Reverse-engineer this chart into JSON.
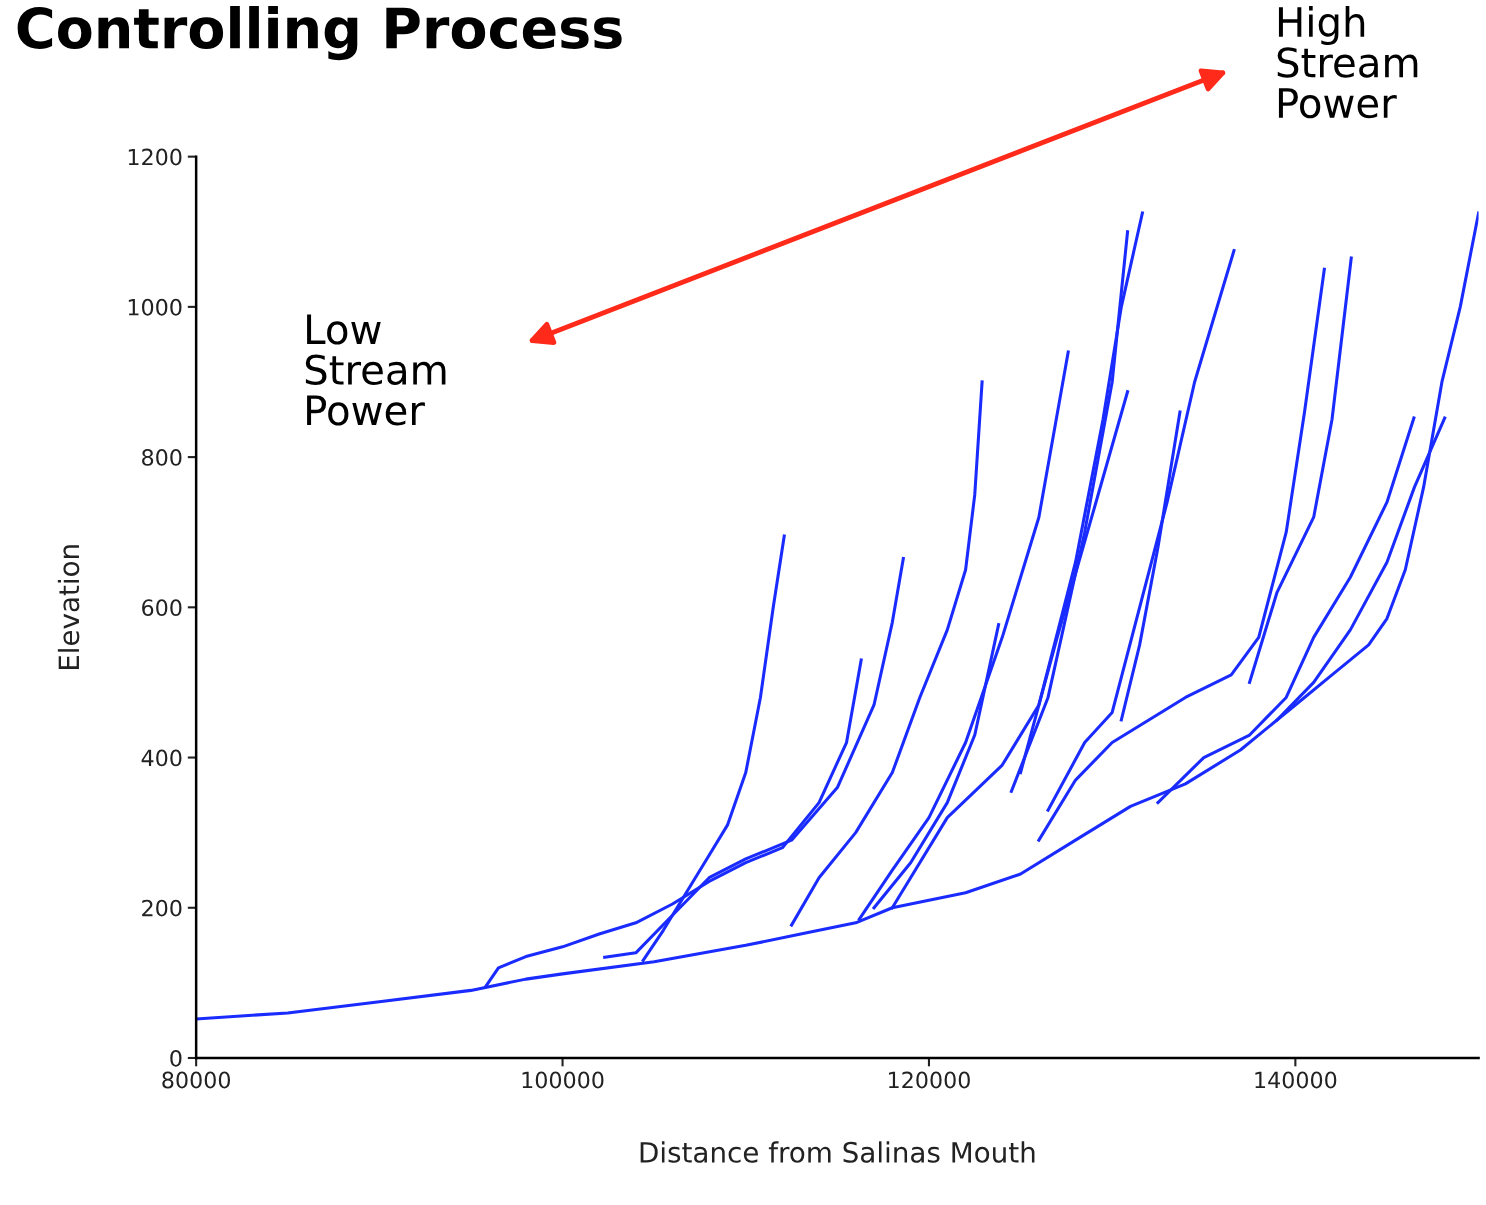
{
  "chart_data": {
    "type": "line",
    "title": "Controlling Process",
    "xlabel": "Distance from Salinas Mouth",
    "ylabel": "Elevation",
    "xlim": [
      80000,
      150000
    ],
    "ylim": [
      0,
      1200
    ],
    "xticks": [
      80000,
      100000,
      120000,
      140000
    ],
    "yticks": [
      0,
      200,
      400,
      600,
      800,
      1000,
      1200
    ],
    "grid": false,
    "legend": false,
    "marker": "none",
    "line_style": "solid",
    "annotations": [
      "Low\nStream\nPower",
      "High\nStream\nPower"
    ],
    "series": [
      {
        "color": "#1a2bff",
        "x": [
          80000,
          85000,
          90000,
          95000,
          98000,
          100000,
          105000,
          110000,
          113000,
          116000,
          118000,
          122000,
          125000,
          128000,
          131000,
          134000,
          137000,
          140000,
          142000,
          144000,
          145000,
          146000,
          147000,
          148000,
          149000,
          150000
        ],
        "values": [
          52,
          60,
          75,
          90,
          105,
          112,
          128,
          150,
          165,
          180,
          200,
          220,
          245,
          290,
          335,
          365,
          410,
          470,
          510,
          550,
          585,
          650,
          760,
          900,
          1000,
          1125
        ]
      },
      {
        "color": "#1a2bff",
        "x": [
          104400,
          105500,
          106500,
          108000,
          109000,
          110000,
          110800,
          111500,
          112100
        ],
        "values": [
          130,
          170,
          210,
          270,
          310,
          380,
          480,
          600,
          695
        ]
      },
      {
        "color": "#1a2bff",
        "x": [
          95800,
          96500,
          98000,
          100000,
          102000,
          104000,
          106000,
          108000,
          110000,
          112000,
          114000,
          115500,
          116300
        ],
        "values": [
          95,
          120,
          135,
          148,
          165,
          180,
          205,
          235,
          260,
          280,
          340,
          420,
          530
        ]
      },
      {
        "color": "#1a2bff",
        "x": [
          102300,
          104000,
          106000,
          108000,
          110000,
          112500,
          115000,
          117000,
          118000,
          118600
        ],
        "values": [
          134,
          140,
          190,
          240,
          265,
          290,
          360,
          470,
          580,
          665
        ]
      },
      {
        "color": "#1a2bff",
        "x": [
          112500,
          114000,
          116000,
          118000,
          119500,
          121000,
          122000,
          122500,
          122900
        ],
        "values": [
          177,
          240,
          300,
          380,
          480,
          570,
          650,
          750,
          900
        ]
      },
      {
        "color": "#1a2bff",
        "x": [
          116200,
          118000,
          120000,
          122000,
          124000,
          126000,
          127600
        ],
        "values": [
          185,
          250,
          320,
          420,
          560,
          720,
          940
        ]
      },
      {
        "color": "#1a2bff",
        "x": [
          117000,
          119000,
          121000,
          122500,
          123800
        ],
        "values": [
          200,
          260,
          340,
          430,
          577
        ]
      },
      {
        "color": "#1a2bff",
        "x": [
          118000,
          121000,
          124000,
          126000,
          128000,
          129500,
          130500,
          131650
        ],
        "values": [
          200,
          320,
          390,
          470,
          660,
          850,
          1000,
          1125
        ]
      },
      {
        "color": "#1a2bff",
        "x": [
          124500,
          126500,
          128500,
          130000,
          130840
        ],
        "values": [
          355,
          480,
          700,
          900,
          1100
        ]
      },
      {
        "color": "#1a2bff",
        "x": [
          125000,
          127000,
          129000,
          130840
        ],
        "values": [
          380,
          560,
          730,
          887
        ]
      },
      {
        "color": "#1a2bff",
        "x": [
          130500,
          131500,
          132500,
          133700
        ],
        "values": [
          450,
          550,
          680,
          860
        ]
      },
      {
        "color": "#1a2bff",
        "x": [
          126500,
          128500,
          130000,
          131500,
          133000,
          134500,
          136650
        ],
        "values": [
          330,
          420,
          460,
          600,
          740,
          900,
          1075
        ]
      },
      {
        "color": "#1a2bff",
        "x": [
          126000,
          128000,
          130000,
          132000,
          134000,
          136500,
          138000,
          139500,
          140500,
          141580
        ],
        "values": [
          290,
          370,
          420,
          450,
          480,
          510,
          560,
          700,
          860,
          1050
        ]
      },
      {
        "color": "#1a2bff",
        "x": [
          137500,
          139000,
          141000,
          142000,
          143050
        ],
        "values": [
          500,
          620,
          720,
          850,
          1065
        ]
      },
      {
        "color": "#1a2bff",
        "x": [
          132500,
          135000,
          137500,
          139500,
          141000,
          143000,
          145000,
          146470
        ],
        "values": [
          340,
          400,
          430,
          480,
          560,
          640,
          740,
          852
        ]
      },
      {
        "color": "#1a2bff",
        "x": [
          139000,
          141000,
          143000,
          145000,
          146500,
          148150
        ],
        "values": [
          450,
          500,
          570,
          660,
          760,
          852
        ]
      }
    ]
  }
}
